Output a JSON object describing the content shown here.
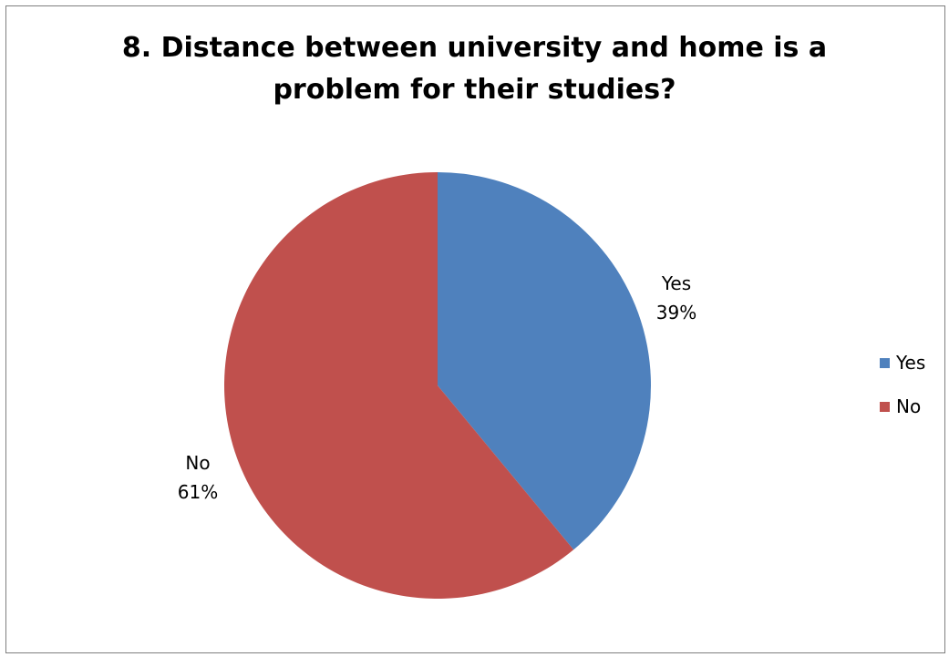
{
  "chart_data": {
    "type": "pie",
    "title_lines": [
      "8. Distance between university and home is a",
      "problem for their studies?"
    ],
    "categories": [
      "Yes",
      "No"
    ],
    "values": [
      39,
      61
    ],
    "percent_labels": [
      "39%",
      "61%"
    ],
    "colors": [
      "#4f81bd",
      "#c0504d"
    ],
    "legend": {
      "position": "right",
      "entries": [
        "Yes",
        "No"
      ]
    }
  }
}
